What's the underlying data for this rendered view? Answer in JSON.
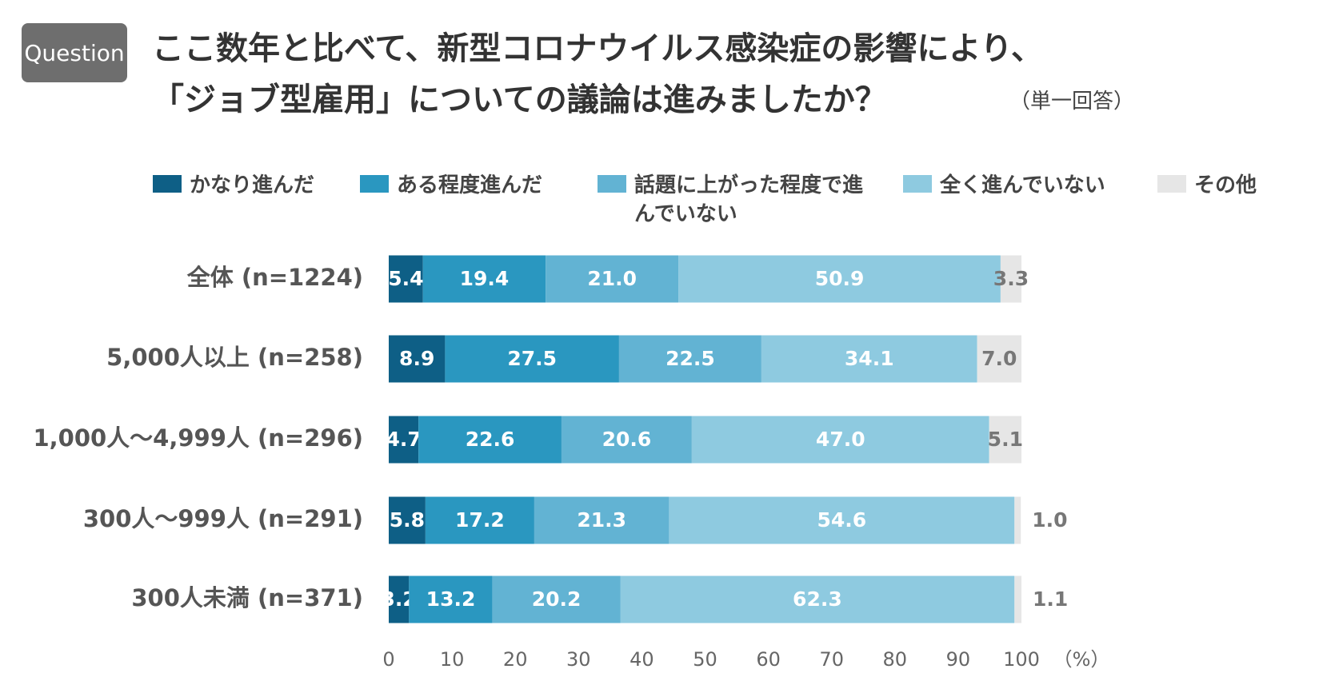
{
  "badge": "Question",
  "chart_data": {
    "type": "stacked_barh",
    "title": [
      "ここ数年と比べて、新型コロナウイルス感染症の影響により、",
      "「ジョブ型雇用」についての議論は進みましたか？"
    ],
    "subtitle": "（単一回答）",
    "categories": [
      "全体 (n=1224)",
      "5,000人以上 (n=258)",
      "1,000人～4,999人 (n=296)",
      "300人～999人 (n=291)",
      "300人未満 (n=371)"
    ],
    "series": [
      {
        "name": "かなり進んだ",
        "color": "#0e5f86",
        "values": [
          5.4,
          8.9,
          4.7,
          5.8,
          3.2
        ],
        "value_labels": [
          "5.4",
          "8.9",
          "4.7",
          "5.8",
          "3.2"
        ]
      },
      {
        "name": "ある程度進んだ",
        "color": "#2a97c0",
        "values": [
          19.4,
          27.5,
          22.6,
          17.2,
          13.2
        ],
        "value_labels": [
          "19.4",
          "27.5",
          "22.6",
          "17.2",
          "13.2"
        ]
      },
      {
        "name": "話題に上がった程度で進んでいない",
        "color": "#62b3d3",
        "values": [
          21.0,
          22.5,
          20.6,
          21.3,
          20.2
        ],
        "value_labels": [
          "21.0",
          "22.5",
          "20.6",
          "21.3",
          "20.2"
        ]
      },
      {
        "name": "全く進んでいない",
        "color": "#8ecae0",
        "values": [
          50.9,
          34.1,
          47.0,
          54.6,
          62.3
        ],
        "value_labels": [
          "50.9",
          "34.1",
          "47.0",
          "54.6",
          "62.3"
        ]
      },
      {
        "name": "その他",
        "color": "#e6e6e6",
        "values": [
          3.3,
          7.0,
          5.1,
          1.0,
          1.1
        ],
        "value_labels": [
          "3.3",
          "7.0",
          "5.1",
          "1.0",
          "1.1"
        ]
      }
    ],
    "xlim": [
      0,
      100
    ],
    "xticks": [
      0,
      10,
      20,
      30,
      40,
      50,
      60,
      70,
      80,
      90,
      100
    ],
    "xlabel": "（%）"
  }
}
